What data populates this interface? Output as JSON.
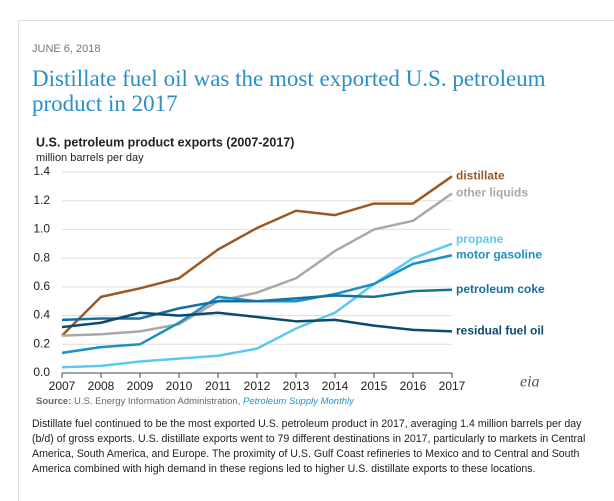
{
  "date": "JUNE 6, 2018",
  "headline": "Distillate fuel oil was the most exported U.S. petroleum product in 2017",
  "chart_data": {
    "type": "line",
    "title": "U.S. petroleum product exports (2007-2017)",
    "y_label": "million barrels per day",
    "x": [
      2007,
      2008,
      2009,
      2010,
      2011,
      2012,
      2013,
      2014,
      2015,
      2016,
      2017
    ],
    "xlim": [
      2007,
      2017
    ],
    "xticks": [
      2007,
      2008,
      2009,
      2010,
      2011,
      2012,
      2013,
      2014,
      2015,
      2016,
      2017
    ],
    "ylim": [
      0,
      1.4
    ],
    "yticks": [
      {
        "value": 0,
        "label": "0.0"
      },
      0.2,
      0.4,
      0.6,
      0.8,
      {
        "value": 1,
        "label": "1.0"
      },
      1.2,
      1.4
    ],
    "grid": true,
    "series": [
      {
        "name": "distillate",
        "color": "#9a5a26",
        "values": [
          0.26,
          0.53,
          0.59,
          0.66,
          0.86,
          1.01,
          1.13,
          1.1,
          1.18,
          1.18,
          1.37
        ]
      },
      {
        "name": "other liquids",
        "color": "#a8a8a8",
        "values": [
          0.26,
          0.27,
          0.29,
          0.34,
          0.5,
          0.56,
          0.66,
          0.85,
          1.0,
          1.06,
          1.25
        ]
      },
      {
        "name": "propane",
        "color": "#5bc8f2",
        "values": [
          0.04,
          0.05,
          0.08,
          0.1,
          0.12,
          0.17,
          0.31,
          0.42,
          0.62,
          0.8,
          0.9
        ]
      },
      {
        "name": "motor gasoline",
        "color": "#1c8fc4",
        "values": [
          0.14,
          0.18,
          0.2,
          0.35,
          0.53,
          0.5,
          0.5,
          0.55,
          0.62,
          0.76,
          0.82
        ]
      },
      {
        "name": "petroleum coke",
        "color": "#17709e",
        "values": [
          0.37,
          0.38,
          0.38,
          0.45,
          0.5,
          0.5,
          0.52,
          0.54,
          0.53,
          0.57,
          0.58
        ]
      },
      {
        "name": "residual fuel oil",
        "color": "#0d4a6e",
        "values": [
          0.32,
          0.35,
          0.42,
          0.4,
          0.42,
          0.39,
          0.36,
          0.37,
          0.33,
          0.3,
          0.29
        ]
      }
    ],
    "source_label": "Source:",
    "source_text": "U.S. Energy Information Administration,",
    "source_italic": "Petroleum Supply Monthly",
    "logo": "eia"
  },
  "body": "Distillate fuel continued to be the most exported U.S. petroleum product in 2017, averaging 1.4 million barrels per day (b/d) of gross exports. U.S. distillate exports went to 79 different destinations in 2017, particularly to markets in Central America, South America, and Europe. The proximity of U.S. Gulf Coast refineries to Mexico and to Central and South America combined with high demand in these regions led to higher U.S. distillate exports to these locations."
}
